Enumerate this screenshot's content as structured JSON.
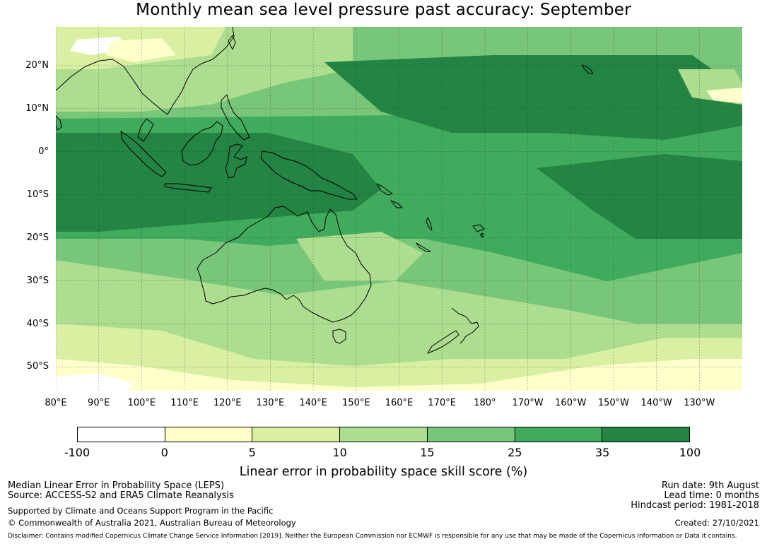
{
  "title": "Monthly mean sea level pressure past accuracy: September",
  "map": {
    "lat_labels": [
      "20°N",
      "10°N",
      "0°",
      "10°S",
      "20°S",
      "30°S",
      "40°S",
      "50°S"
    ],
    "lon_labels": [
      "80°E",
      "90°E",
      "100°E",
      "110°E",
      "120°E",
      "130°E",
      "140°E",
      "150°E",
      "160°E",
      "170°E",
      "180°",
      "170°W",
      "160°W",
      "150°W",
      "140°W",
      "130°W"
    ],
    "lat_values": [
      20,
      10,
      0,
      -10,
      -20,
      -30,
      -40,
      -50
    ],
    "lon_values": [
      80,
      90,
      100,
      110,
      120,
      130,
      140,
      150,
      160,
      170,
      180,
      190,
      200,
      210,
      220,
      230
    ],
    "extent": {
      "lon_min": 80,
      "lon_max": 240,
      "lat_min": -55.5,
      "lat_max": 29
    }
  },
  "colorbar": {
    "label": "Linear error in probability space skill score (%)",
    "ticks": [
      "-100",
      "0",
      "5",
      "10",
      "15",
      "25",
      "35",
      "100"
    ],
    "colors": [
      "#ffffff",
      "#ffffcc",
      "#d9f0a3",
      "#addd8e",
      "#78c679",
      "#41ab5d",
      "#238443"
    ]
  },
  "footer": {
    "left_line1": "Median Linear Error in Probability Space (LEPS)",
    "left_line2": "Source: ACCESS-S2 and ERA5 Climate Reanalysis",
    "left_line3": "Supported by Climate and Oceans Support Program in the Pacific",
    "left_line4": "© Commonwealth of Australia 2021, Australian Bureau of Meteorology",
    "right_line1": "Run date: 9th August",
    "right_line2": "Lead time: 0 months",
    "right_line3": "Hindcast period: 1981-2018",
    "right_line4": "Created: 27/10/2021",
    "disclaimer": "Disclaimer: Contains modified Copernicus Climate Change Service Information [2019]. Neither the European Commission nor ECMWF is responsible for any use that may be made of the Copernicus Information or Data it contains."
  }
}
